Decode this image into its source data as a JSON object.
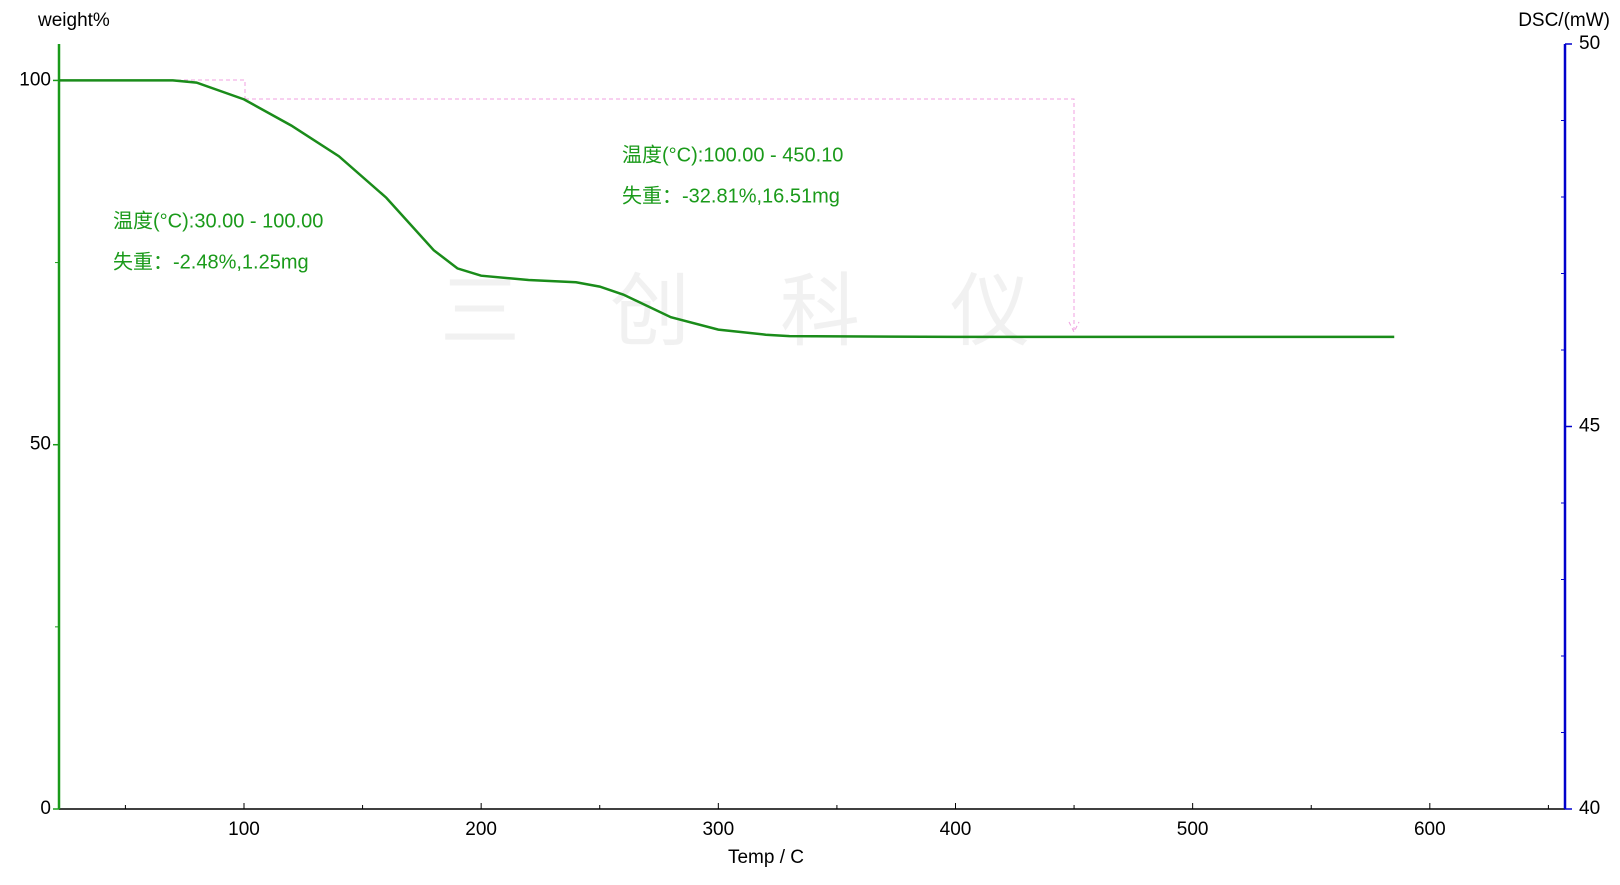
{
  "chart_data": {
    "type": "line",
    "y_label": "weight%",
    "y2_label": "DSC/(mW)",
    "x_label": "Temp / C",
    "watermark": "三 创 科 仪",
    "annotations": [
      "温度(°C):30.00 - 100.00",
      "失重：-2.48%,1.25mg",
      "温度(°C):100.00 - 450.10",
      "失重：-32.81%,16.51mg"
    ],
    "series": [
      {
        "name": "weight%",
        "color": "#1a8c1a",
        "x": [
          22,
          70,
          80,
          100,
          120,
          140,
          160,
          180,
          190,
          200,
          220,
          240,
          250,
          260,
          280,
          300,
          320,
          330,
          400,
          500,
          585
        ],
        "values": [
          100,
          100,
          99.7,
          97.4,
          93.8,
          89.6,
          83.9,
          76.7,
          74.2,
          73.2,
          72.6,
          72.3,
          71.7,
          70.6,
          67.5,
          65.8,
          65.1,
          64.9,
          64.8,
          64.8,
          64.8
        ]
      }
    ],
    "xlim": [
      22,
      657
    ],
    "xticks": [
      100,
      200,
      300,
      400,
      500,
      600
    ],
    "xminorticks": [
      50,
      150,
      250,
      350,
      450,
      550,
      650
    ],
    "ylim": [
      0,
      105
    ],
    "yticks": [
      0,
      50,
      100
    ],
    "yminorticks": [
      25,
      75
    ],
    "y2lim": [
      40,
      50
    ],
    "y2ticks": [
      40,
      45,
      50
    ],
    "y2minorticks": [
      41,
      42,
      43,
      44,
      46,
      47,
      48,
      49
    ],
    "axis_color": "#1a9a1a",
    "y2_axis_color": "#0000cc"
  }
}
